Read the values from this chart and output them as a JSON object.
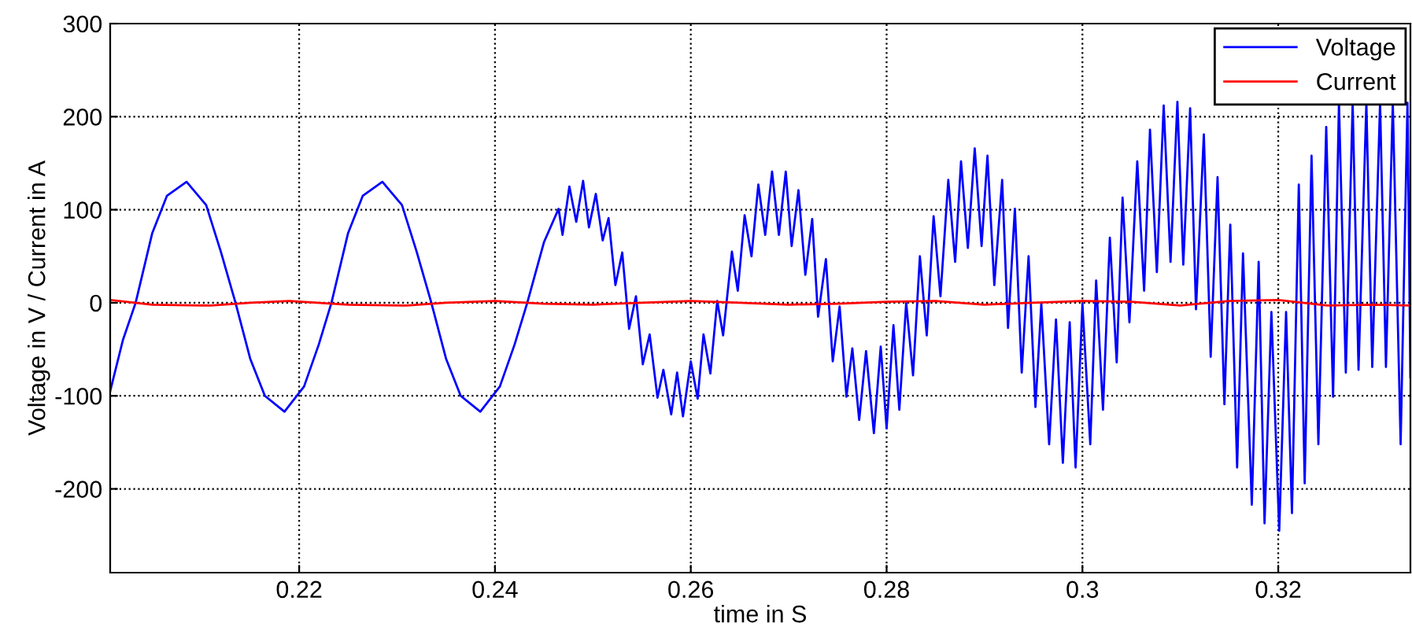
{
  "chart_data": {
    "type": "line",
    "xlabel": "time in S",
    "ylabel": "Voltage in V / Current in A",
    "xlim": [
      0.2007,
      0.3335
    ],
    "ylim": [
      -290,
      300
    ],
    "xticks": [
      0.22,
      0.24,
      0.26,
      0.28,
      {
        "value": 0.3,
        "label": "0.3"
      },
      0.32
    ],
    "yticks": [
      -200,
      -100,
      0,
      100,
      200,
      300
    ],
    "grid": true,
    "legend": "top right",
    "line_style": "solid",
    "marker": "none",
    "series": [
      {
        "name": "Voltage",
        "color": "#0000ff",
        "x": [
          0.2007,
          0.202,
          0.2033,
          0.205,
          0.2065,
          0.2085,
          0.2105,
          0.212,
          0.2135,
          0.215,
          0.2165,
          0.2185,
          0.2205,
          0.222,
          0.2233,
          0.225,
          0.2265,
          0.2285,
          0.2305,
          0.232,
          0.2335,
          0.235,
          0.2365,
          0.2385,
          0.2405,
          0.242,
          0.2433,
          0.245,
          0.2465,
          0.2469,
          0.2476,
          0.2483,
          0.249,
          0.2496,
          0.2503,
          0.251,
          0.2516,
          0.2523,
          0.253,
          0.2537,
          0.2544,
          0.2551,
          0.2558,
          0.2566,
          0.2572,
          0.258,
          0.2586,
          0.2592,
          0.26,
          0.2607,
          0.2613,
          0.262,
          0.2627,
          0.2633,
          0.2642,
          0.2648,
          0.2655,
          0.2662,
          0.2669,
          0.2676,
          0.2683,
          0.269,
          0.2697,
          0.2703,
          0.271,
          0.2717,
          0.2724,
          0.273,
          0.2738,
          0.2745,
          0.2752,
          0.2759,
          0.2765,
          0.2772,
          0.2779,
          0.2787,
          0.2794,
          0.28,
          0.2807,
          0.2813,
          0.282,
          0.2827,
          0.2834,
          0.2841,
          0.2848,
          0.2855,
          0.2863,
          0.287,
          0.2876,
          0.2883,
          0.289,
          0.2897,
          0.2903,
          0.291,
          0.2918,
          0.2924,
          0.2931,
          0.2938,
          0.2945,
          0.2952,
          0.2958,
          0.2966,
          0.2973,
          0.298,
          0.2987,
          0.2993,
          0.3,
          0.3008,
          0.3014,
          0.3021,
          0.3028,
          0.3035,
          0.3041,
          0.3048,
          0.3056,
          0.3063,
          0.3069,
          0.3076,
          0.3083,
          0.309,
          0.3097,
          0.3103,
          0.311,
          0.3116,
          0.3124,
          0.3131,
          0.3138,
          0.3145,
          0.3151,
          0.3158,
          0.3164,
          0.3173,
          0.318,
          0.3186,
          0.3193,
          0.3201,
          0.3208,
          0.3214,
          0.3221,
          0.3227,
          0.3234,
          0.3241,
          0.3249,
          0.3256,
          0.3262,
          0.3269,
          0.3276,
          0.3282,
          0.329,
          0.3296,
          0.3304,
          0.331,
          0.3317,
          0.3325,
          0.3332,
          0.3335
        ],
        "values": [
          -95,
          -40,
          0,
          75,
          115,
          130,
          105,
          55,
          0,
          -60,
          -100,
          -117,
          -90,
          -45,
          0,
          75,
          115,
          130,
          105,
          55,
          0,
          -60,
          -100,
          -117,
          -90,
          -45,
          0,
          65,
          101,
          73,
          125,
          87,
          131,
          81,
          117,
          67,
          91,
          19,
          54,
          -28,
          7,
          -66,
          -34,
          -102,
          -72,
          -120,
          -75,
          -122,
          -63,
          -103,
          -34,
          -76,
          2,
          -35,
          55,
          13,
          94,
          50,
          127,
          73,
          141,
          73,
          141,
          61,
          121,
          30,
          90,
          -15,
          47,
          -63,
          -4,
          -101,
          -49,
          -126,
          -52,
          -140,
          -47,
          -135,
          -24,
          -115,
          0,
          -78,
          50,
          -35,
          93,
          7,
          132,
          44,
          152,
          59,
          166,
          61,
          158,
          19,
          132,
          -27,
          101,
          -75,
          50,
          -112,
          -1,
          -152,
          -18,
          -172,
          -21,
          -177,
          -1,
          -152,
          24,
          -115,
          70,
          -64,
          113,
          -21,
          152,
          13,
          186,
          33,
          212,
          44,
          216,
          41,
          209,
          -7,
          181,
          -58,
          135,
          -109,
          84,
          -177,
          53,
          -217,
          44,
          -237,
          -10,
          -245,
          -10,
          -226,
          127,
          -194,
          158,
          -152,
          189,
          -101,
          215,
          -75,
          215,
          -72,
          215,
          -69,
          215,
          -69,
          215,
          -152,
          215,
          -80
        ]
      },
      {
        "name": "Current",
        "color": "#ff0000",
        "x": [
          0.2007,
          0.205,
          0.211,
          0.215,
          0.219,
          0.225,
          0.231,
          0.235,
          0.24,
          0.245,
          0.25,
          0.255,
          0.26,
          0.265,
          0.27,
          0.275,
          0.28,
          0.285,
          0.29,
          0.295,
          0.3,
          0.305,
          0.31,
          0.315,
          0.32,
          0.325,
          0.33,
          0.3335
        ],
        "values": [
          3,
          -2,
          -3,
          0,
          2,
          -2,
          -3,
          0,
          2,
          -1,
          -2,
          0,
          2,
          0,
          -2,
          -1,
          1,
          2,
          -2,
          0,
          2,
          1,
          -3,
          2,
          3,
          -3,
          -2,
          -3
        ]
      }
    ]
  }
}
